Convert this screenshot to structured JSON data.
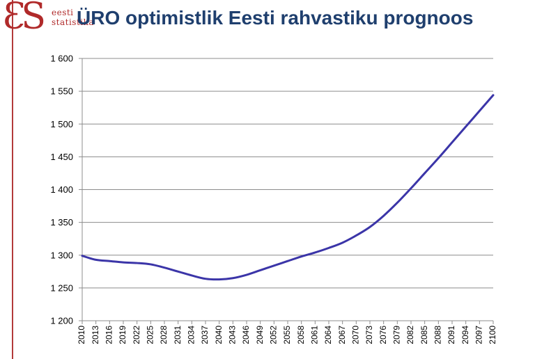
{
  "logo": {
    "mark": "ƐS",
    "line1": "eesti",
    "line2": "statistika"
  },
  "colors": {
    "accent": "#b33a3a",
    "title": "#1f3f6e",
    "series": "#3b35a8",
    "grid": "#8c8c8c"
  },
  "chart_data": {
    "type": "line",
    "title": "ÜRO optimistlik Eesti rahvastiku prognoos",
    "xlabel": "",
    "ylabel": "",
    "ylim": [
      1200,
      1600
    ],
    "yticks": [
      1200,
      1250,
      1300,
      1350,
      1400,
      1450,
      1500,
      1550,
      1600
    ],
    "ytick_labels": [
      "1 200",
      "1 250",
      "1 300",
      "1 350",
      "1 400",
      "1 450",
      "1 500",
      "1 550",
      "1 600"
    ],
    "x": [
      "2010",
      "2013",
      "2016",
      "2019",
      "2022",
      "2025",
      "2028",
      "2031",
      "2034",
      "2037",
      "2040",
      "2043",
      "2046",
      "2049",
      "2052",
      "2055",
      "2058",
      "2061",
      "2064",
      "2067",
      "2070",
      "2073",
      "2076",
      "2079",
      "2082",
      "2085",
      "2088",
      "2091",
      "2094",
      "2097",
      "2100"
    ],
    "grid": true,
    "legend": "none",
    "series": [
      {
        "values": [
          1299,
          1293,
          1291,
          1289,
          1288,
          1286,
          1281,
          1275,
          1269,
          1264,
          1263,
          1265,
          1270,
          1277,
          1284,
          1291,
          1298,
          1304,
          1311,
          1319,
          1330,
          1343,
          1360,
          1380,
          1402,
          1425,
          1448,
          1472,
          1496,
          1520,
          1544
        ]
      }
    ]
  }
}
